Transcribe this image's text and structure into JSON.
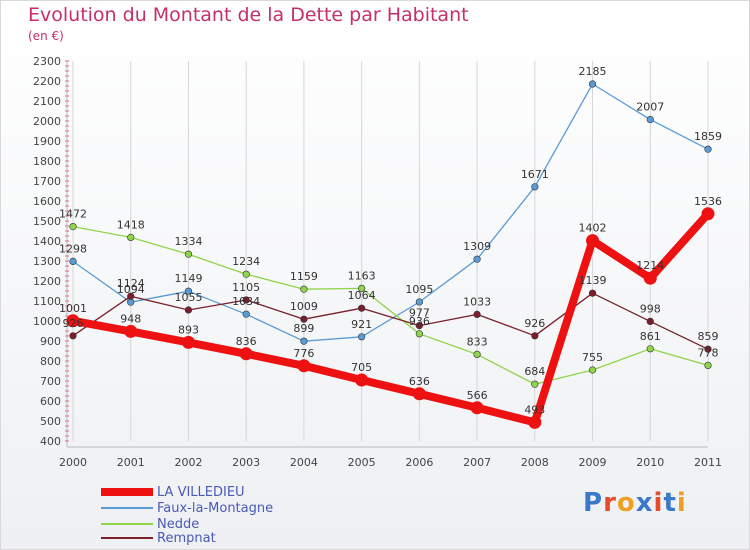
{
  "title": "Evolution du Montant de la Dette par Habitant",
  "subtitle": "(en €)",
  "logo": {
    "text": "Proxiti",
    "letter_colors": [
      "#3a78c8",
      "#e84b2a",
      "#f0a020",
      "#3a78c8",
      "#e84b2a",
      "#3a78c8",
      "#f0a020"
    ]
  },
  "chart_data": {
    "type": "line",
    "title": "Evolution du Montant de la Dette par Habitant",
    "subtitle": "(en €)",
    "xlabel": "",
    "ylabel": "",
    "ylim": [
      400,
      2300
    ],
    "y_ticks": [
      400,
      500,
      600,
      700,
      800,
      900,
      1000,
      1100,
      1200,
      1300,
      1400,
      1500,
      1600,
      1700,
      1800,
      1900,
      2000,
      2100,
      2200,
      2300
    ],
    "categories": [
      "2000",
      "2001",
      "2002",
      "2003",
      "2004",
      "2005",
      "2006",
      "2007",
      "2008",
      "2009",
      "2010",
      "2011"
    ],
    "grid": "vertical",
    "legend_position": "bottom-left",
    "series": [
      {
        "name": "Faux-la-Montagne",
        "color": "#5b9bd5",
        "values": [
          1298,
          1094,
          1149,
          1034,
          899,
          921,
          1095,
          1309,
          1671,
          2185,
          2007,
          1859
        ],
        "labels": [
          "1298",
          "1094",
          "1149",
          "1034",
          "899",
          "921",
          "1095",
          "1309",
          "1671",
          "2185",
          "2007",
          "1859"
        ]
      },
      {
        "name": "Nedde",
        "color": "#8fd44a",
        "values": [
          1472,
          1418,
          1334,
          1234,
          1159,
          1163,
          936,
          833,
          684,
          755,
          861,
          778
        ],
        "labels": [
          "1472",
          "1418",
          "1334",
          "1234",
          "1159",
          "1163",
          "936",
          "833",
          "684",
          "755",
          "861",
          "778"
        ]
      },
      {
        "name": "Rempnat",
        "color": "#7a1f2b",
        "values": [
          926,
          1124,
          1055,
          1105,
          1009,
          1064,
          977,
          1033,
          926,
          1139,
          998,
          859
        ],
        "labels": [
          "926",
          "1124",
          "1055",
          "1105",
          "1009",
          "1064",
          "977",
          "1033",
          "926",
          "1139",
          "998",
          "859"
        ]
      },
      {
        "name": "LA VILLEDIEU",
        "color": "#ee1111",
        "values": [
          1001,
          948,
          893,
          836,
          776,
          705,
          636,
          566,
          493,
          1402,
          1214,
          1536
        ],
        "labels": [
          "1001",
          "948",
          "893",
          "836",
          "776",
          "705",
          "636",
          "566",
          "493",
          "1402",
          "1214",
          "1536"
        ]
      }
    ]
  },
  "legend": [
    {
      "name": "LA VILLEDIEU",
      "color": "#ee1111"
    },
    {
      "name": "Faux-la-Montagne",
      "color": "#5b9bd5"
    },
    {
      "name": "Nedde",
      "color": "#8fd44a"
    },
    {
      "name": "Rempnat",
      "color": "#7a1f2b"
    }
  ]
}
